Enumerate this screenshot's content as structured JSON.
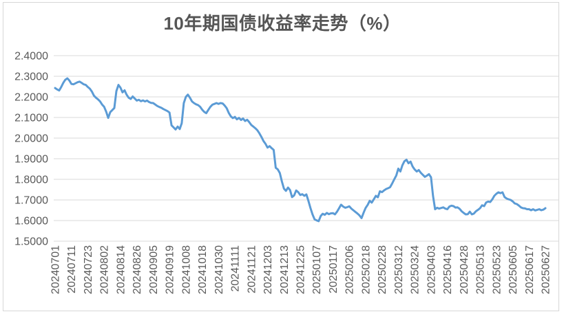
{
  "chart": {
    "background": "#FFFFFF",
    "frame_color": "#D7D7D7",
    "gridline_color": "#D9D9D9",
    "axis_label_color": "#595959",
    "title_color": "#555555"
  },
  "chart_data": {
    "type": "line",
    "title": "10年期国债收益率走势（%）",
    "xlabel": "",
    "ylabel": "",
    "ylim": [
      1.5,
      2.4
    ],
    "grid": "horizontal",
    "legend": "none",
    "y_tick_labels": [
      "2.4000",
      "2.3000",
      "2.2000",
      "2.1000",
      "2.0000",
      "1.9000",
      "1.8000",
      "1.7000",
      "1.6000",
      "1.5000"
    ],
    "x_tick_step": 8,
    "x_tick_labels": [
      "20240701",
      "20240711",
      "20240723",
      "20240802",
      "20240814",
      "20240826",
      "20240905",
      "20240919",
      "20241008",
      "20241018",
      "20241030",
      "20241111",
      "20241121",
      "20241203",
      "20241213",
      "20241225",
      "20250107",
      "20250117",
      "20250206",
      "20250218",
      "20250228",
      "20250312",
      "20250324",
      "20250403",
      "20250416",
      "20250428",
      "20250513",
      "20250523",
      "20250605",
      "20250617",
      "20250627"
    ],
    "series": [
      {
        "color": "#5B9BD5",
        "values": [
          2.243,
          2.236,
          2.231,
          2.248,
          2.268,
          2.283,
          2.29,
          2.279,
          2.263,
          2.261,
          2.266,
          2.271,
          2.274,
          2.268,
          2.261,
          2.258,
          2.248,
          2.24,
          2.226,
          2.206,
          2.196,
          2.188,
          2.178,
          2.163,
          2.152,
          2.128,
          2.098,
          2.126,
          2.136,
          2.146,
          2.228,
          2.258,
          2.245,
          2.222,
          2.232,
          2.211,
          2.196,
          2.19,
          2.202,
          2.192,
          2.182,
          2.186,
          2.179,
          2.183,
          2.178,
          2.182,
          2.175,
          2.171,
          2.17,
          2.163,
          2.156,
          2.151,
          2.147,
          2.141,
          2.136,
          2.131,
          2.124,
          2.062,
          2.052,
          2.042,
          2.056,
          2.044,
          2.072,
          2.17,
          2.2,
          2.211,
          2.196,
          2.178,
          2.17,
          2.164,
          2.16,
          2.152,
          2.138,
          2.127,
          2.121,
          2.137,
          2.152,
          2.162,
          2.166,
          2.17,
          2.166,
          2.17,
          2.168,
          2.158,
          2.145,
          2.122,
          2.106,
          2.097,
          2.103,
          2.091,
          2.098,
          2.088,
          2.095,
          2.083,
          2.089,
          2.078,
          2.064,
          2.056,
          2.048,
          2.038,
          2.023,
          2.006,
          1.986,
          1.972,
          1.954,
          1.961,
          1.951,
          1.943,
          1.856,
          1.848,
          1.831,
          1.79,
          1.755,
          1.744,
          1.76,
          1.748,
          1.714,
          1.722,
          1.746,
          1.738,
          1.724,
          1.728,
          1.72,
          1.727,
          1.695,
          1.661,
          1.63,
          1.606,
          1.601,
          1.597,
          1.622,
          1.633,
          1.628,
          1.637,
          1.631,
          1.635,
          1.636,
          1.63,
          1.643,
          1.66,
          1.677,
          1.668,
          1.662,
          1.665,
          1.669,
          1.658,
          1.65,
          1.642,
          1.634,
          1.625,
          1.612,
          1.638,
          1.661,
          1.676,
          1.696,
          1.687,
          1.703,
          1.72,
          1.713,
          1.742,
          1.738,
          1.746,
          1.753,
          1.757,
          1.762,
          1.78,
          1.8,
          1.818,
          1.852,
          1.838,
          1.868,
          1.888,
          1.895,
          1.878,
          1.886,
          1.862,
          1.848,
          1.838,
          1.845,
          1.832,
          1.822,
          1.812,
          1.818,
          1.825,
          1.81,
          1.72,
          1.655,
          1.662,
          1.658,
          1.661,
          1.664,
          1.658,
          1.655,
          1.668,
          1.672,
          1.67,
          1.663,
          1.664,
          1.657,
          1.645,
          1.637,
          1.63,
          1.631,
          1.643,
          1.63,
          1.634,
          1.645,
          1.652,
          1.66,
          1.674,
          1.67,
          1.688,
          1.692,
          1.69,
          1.703,
          1.72,
          1.73,
          1.737,
          1.733,
          1.737,
          1.714,
          1.707,
          1.703,
          1.7,
          1.693,
          1.683,
          1.68,
          1.673,
          1.664,
          1.66,
          1.659,
          1.655,
          1.655,
          1.65,
          1.655,
          1.649,
          1.652,
          1.655,
          1.65,
          1.653,
          1.66
        ]
      }
    ]
  }
}
